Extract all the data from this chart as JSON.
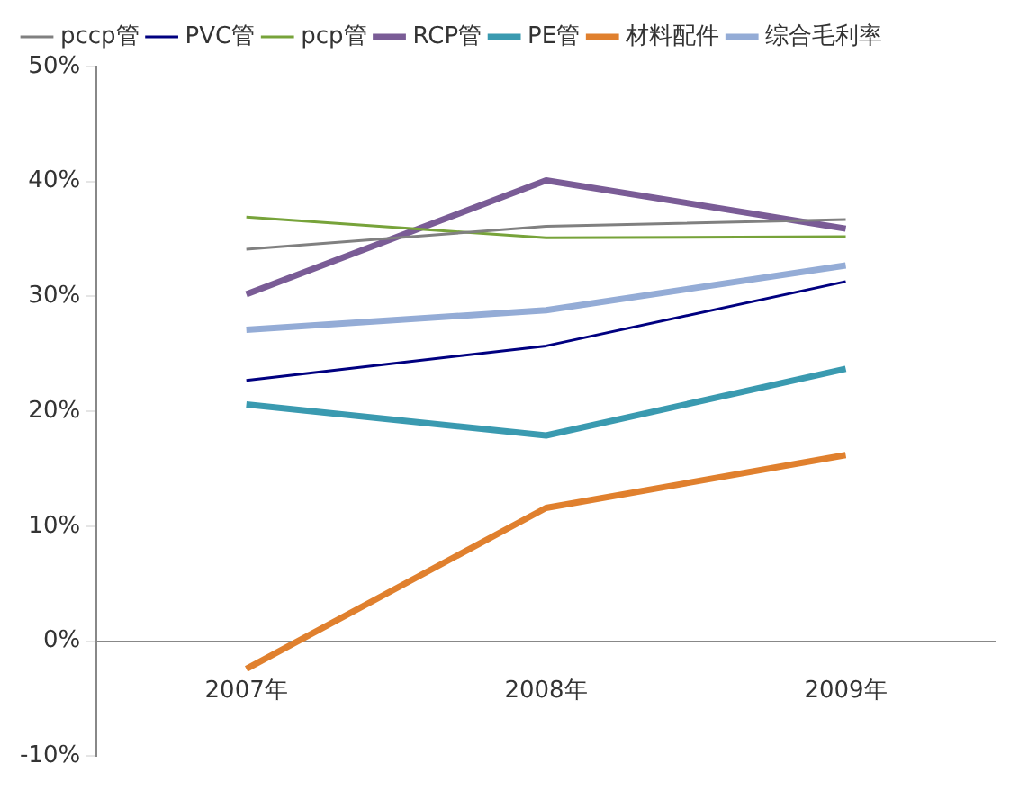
{
  "chart_data": {
    "type": "line",
    "categories": [
      "2007年",
      "2008年",
      "2009年"
    ],
    "series": [
      {
        "name": "pccp管",
        "color": "#808080",
        "values": [
          34.1,
          36.1,
          36.7
        ]
      },
      {
        "name": "PVC管",
        "color": "#000080",
        "values": [
          22.7,
          25.7,
          31.3
        ]
      },
      {
        "name": "pcp管",
        "color": "#77a33a",
        "values": [
          36.9,
          35.1,
          35.2
        ]
      },
      {
        "name": "RCP管",
        "color": "#7a5c96",
        "values": [
          30.2,
          40.1,
          35.9
        ]
      },
      {
        "name": "PE管",
        "color": "#3a9ab0",
        "values": [
          20.6,
          17.9,
          23.7
        ]
      },
      {
        "name": "材料配件",
        "color": "#e0802e",
        "values": [
          -2.4,
          11.6,
          16.2
        ]
      },
      {
        "name": "综合毛利率",
        "color": "#94acd6",
        "values": [
          27.1,
          28.8,
          32.7
        ]
      }
    ],
    "ylim": [
      -10,
      50
    ],
    "yticks": [
      {
        "value": -10,
        "label": "-10%"
      },
      {
        "value": 0,
        "label": "0%"
      },
      {
        "value": 10,
        "label": "10%"
      },
      {
        "value": 20,
        "label": "20%"
      },
      {
        "value": 30,
        "label": "30%"
      },
      {
        "value": 40,
        "label": "40%"
      },
      {
        "value": 50,
        "label": "50%"
      }
    ],
    "grid": false,
    "legend": "top",
    "marker": "none",
    "line_style": "solid"
  }
}
